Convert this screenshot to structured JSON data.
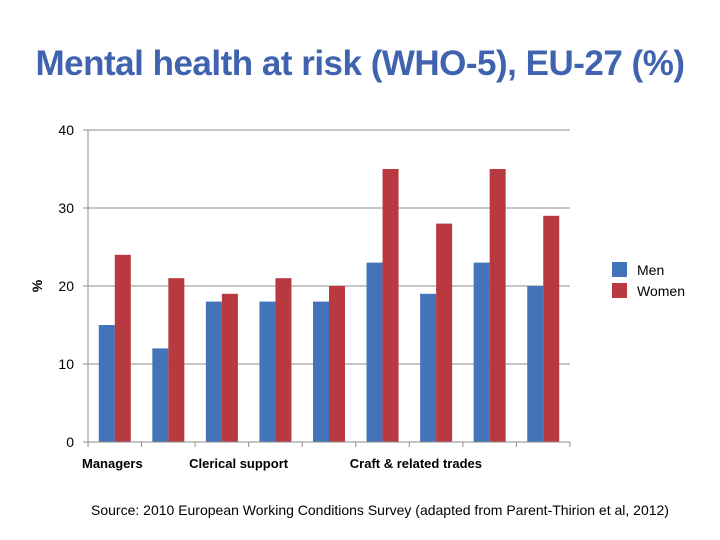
{
  "title": "Mental health at risk (WHO-5), EU-27 (%)",
  "source": "Source: 2010 European Working Conditions Survey (adapted from  Parent-Thirion et al, 2012)",
  "chart_data": {
    "type": "bar",
    "categories": [
      "Managers",
      "",
      "Clerical support",
      "",
      "",
      "Craft & related trades",
      "",
      "",
      ""
    ],
    "series": [
      {
        "name": "Men",
        "color": "#4373b9",
        "values": [
          15,
          12,
          18,
          18,
          18,
          23,
          19,
          23,
          20
        ]
      },
      {
        "name": "Women",
        "color": "#b8393f",
        "values": [
          24,
          21,
          19,
          21,
          20,
          35,
          28,
          35,
          29
        ]
      }
    ],
    "ylabel": "%",
    "ylim": [
      0,
      40
    ],
    "yticks": [
      0,
      10,
      20,
      30,
      40
    ],
    "grid": true,
    "legend": "right"
  }
}
